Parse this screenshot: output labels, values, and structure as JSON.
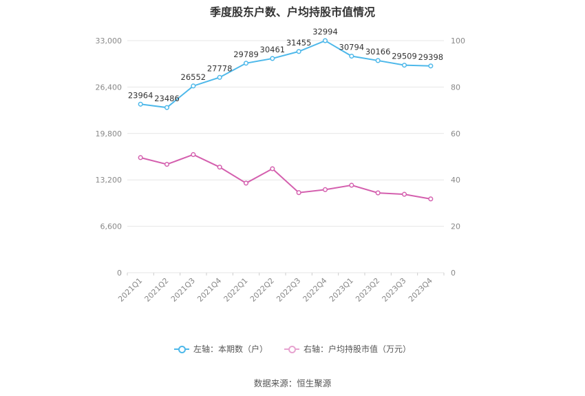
{
  "chart_data": {
    "type": "line",
    "title": "季度股东户数、户均持股市值情况",
    "categories": [
      "2021Q1",
      "2021Q2",
      "2021Q3",
      "2021Q4",
      "2022Q1",
      "2022Q2",
      "2022Q3",
      "2022Q4",
      "2023Q1",
      "2023Q2",
      "2023Q3",
      "2023Q4"
    ],
    "left_axis": {
      "ticks": [
        "0",
        "6,600",
        "13,200",
        "19,800",
        "26,400",
        "33,000"
      ],
      "ylim": [
        0,
        33000
      ]
    },
    "right_axis": {
      "ticks": [
        "0",
        "20",
        "40",
        "60",
        "80",
        "100"
      ],
      "ylim": [
        0,
        100
      ]
    },
    "grid": true,
    "legend_position": "bottom",
    "series": [
      {
        "name": "左轴：本期数（户）",
        "axis": "left",
        "color": "#4db8ea",
        "values": [
          23964,
          23486,
          26552,
          27778,
          29789,
          30461,
          31455,
          32994,
          30794,
          30166,
          29509,
          29398
        ],
        "labels": [
          "23964",
          "23486",
          "26552",
          "27778",
          "29789",
          "30461",
          "31455",
          "32994",
          "30794",
          "30166",
          "29509",
          "29398"
        ]
      },
      {
        "name": "右轴：户均持股市值（万元）",
        "axis": "right",
        "color": "#d45fae",
        "values": [
          49.6,
          46.7,
          50.9,
          45.5,
          38.6,
          44.8,
          34.5,
          35.8,
          37.7,
          34.4,
          33.8,
          31.8
        ]
      }
    ]
  },
  "source": "数据来源：恒生聚源"
}
